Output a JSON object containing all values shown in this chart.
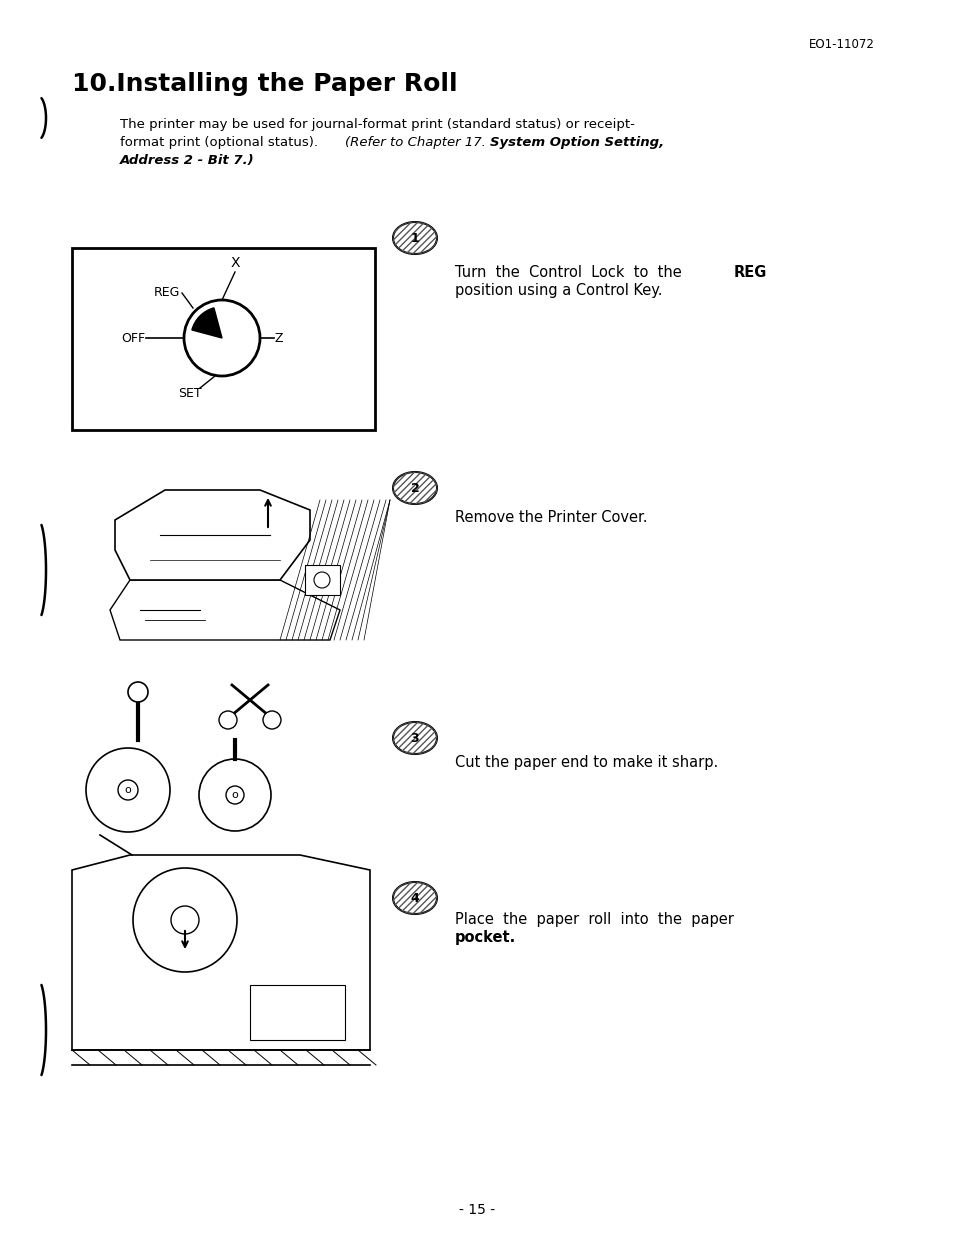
{
  "bg_color": "#ffffff",
  "text_color": "#000000",
  "page_ref": "EO1-11072",
  "title": "10.Installing the Paper Roll",
  "intro_line1": "The printer may be used for journal-format print (standard status) or receipt-",
  "intro_line2": "format print (optional status).  (Refer to Chapter 17. System Option Setting,",
  "intro_line3": "Address 2 - Bit 7.)",
  "step1_text1": "Turn  the  Control  Lock  to  the  ",
  "step1_bold": "REG",
  "step1_text2": "position using a Control Key.",
  "step2_text": "Remove the Printer Cover.",
  "step3_text": "Cut the paper end to make it sharp.",
  "step4_text1": "Place  the  paper  roll  into  the  paper",
  "step4_text2": "pocket.",
  "page_num": "- 15 -",
  "fig_width": 9.54,
  "fig_height": 12.39,
  "dpi": 100
}
